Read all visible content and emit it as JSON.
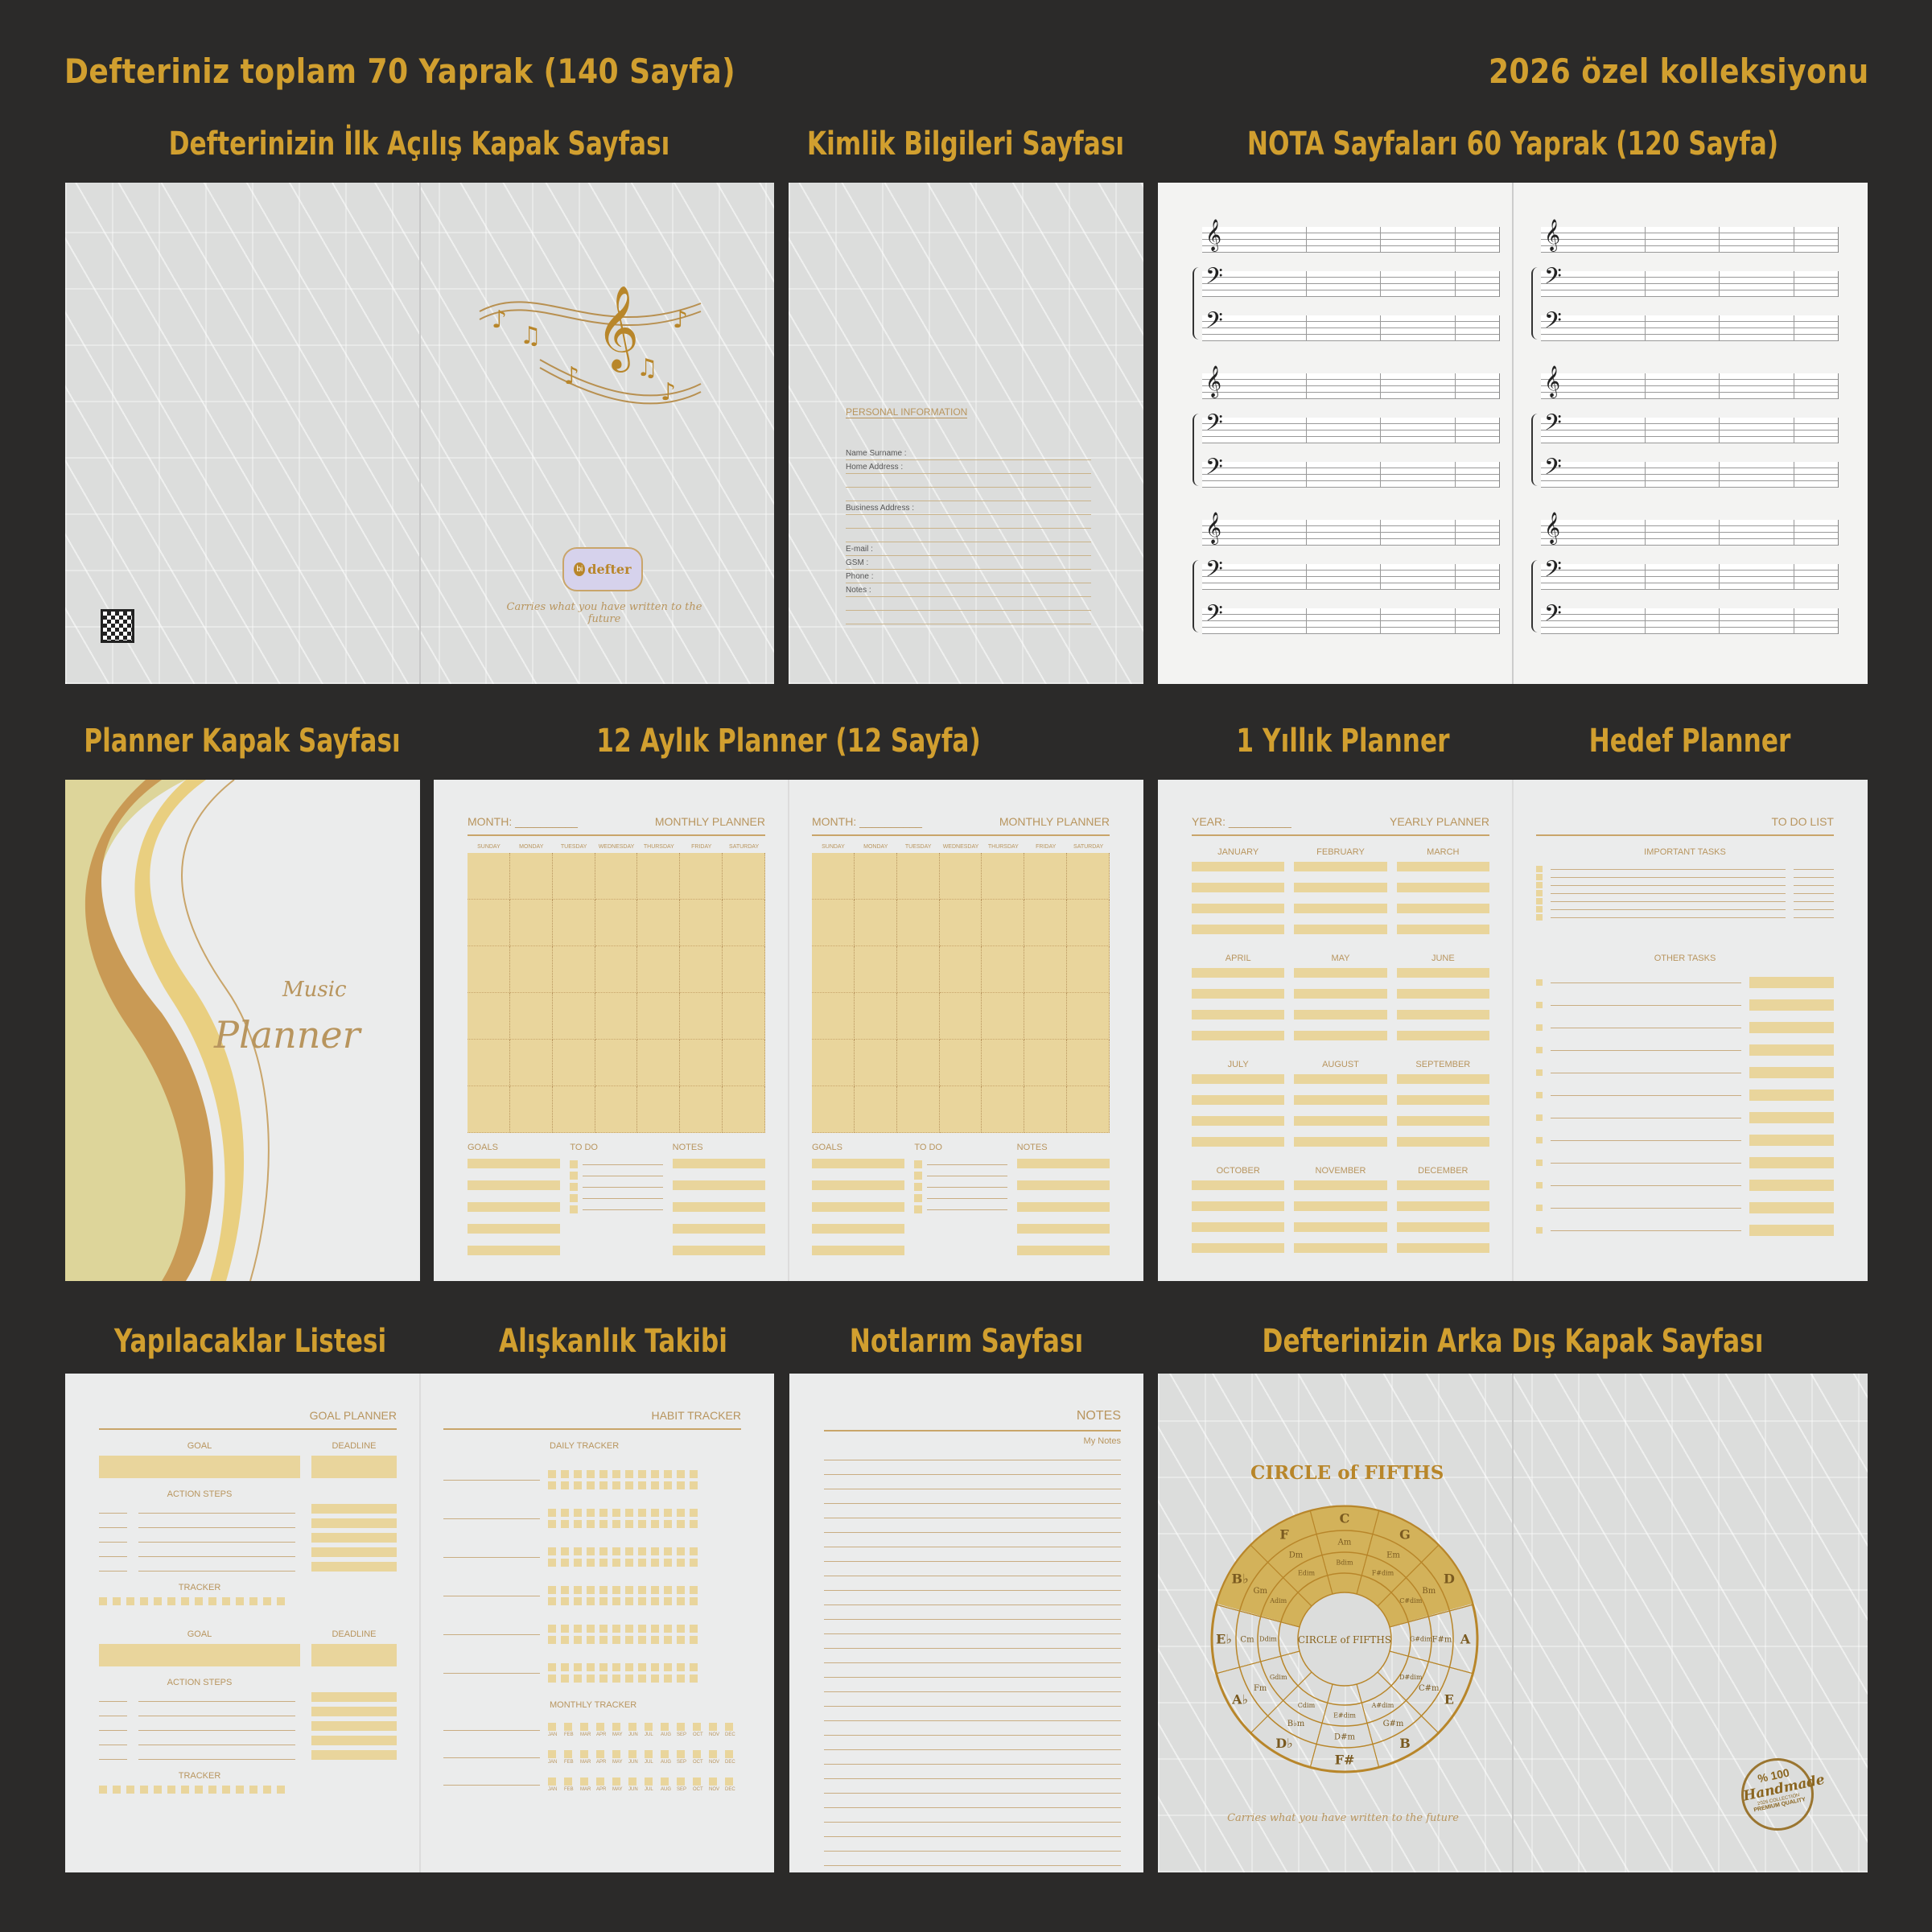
{
  "header": {
    "left": "Defteriniz toplam 70 Yaprak (140 Sayfa)",
    "right": "2026 özel kolleksiyonu"
  },
  "sections": {
    "cover": "Defterinizin İlk Açılış Kapak Sayfası",
    "identity": "Kimlik Bilgileri Sayfası",
    "nota": "NOTA Sayfaları 60 Yaprak (120 Sayfa)",
    "planner_cover": "Planner Kapak Sayfası",
    "monthly": "12 Aylık Planner (12 Sayfa)",
    "yearly": "1 Yıllık Planner",
    "goal_planner": "Hedef Planner",
    "todo": "Yapılacaklar Listesi",
    "habit": "Alışkanlık Takibi",
    "notes": "Notlarım Sayfası",
    "back": "Defterinizin Arka Dış Kapak Sayfası"
  },
  "colors": {
    "background": "#2b2a29",
    "title_gold": "#d19f2f",
    "bar_gold": "#e9d59c",
    "text_gold": "#b8955e",
    "page": "#ebecec"
  },
  "cover": {
    "logo_prefix": "bi",
    "logo_text": "defter",
    "tagline": "Carries what you have written to the future",
    "icons": [
      "music-notes-icon",
      "qr-code-icon"
    ]
  },
  "identity": {
    "heading": "PERSONAL INFORMATION",
    "fields": [
      "Name Surname  :",
      "Home Address   :",
      "",
      "",
      "Business Address :",
      "",
      "",
      "E-mail  :",
      "GSM    :",
      "Phone :",
      "Notes  :",
      "",
      ""
    ]
  },
  "nota": {
    "clefs": [
      "𝄞",
      "𝄢",
      "𝄢"
    ]
  },
  "planner_cover": {
    "line1": "Music",
    "line2": "Planner"
  },
  "monthly": {
    "month_label": "MONTH: __________",
    "title": "MONTHLY PLANNER",
    "days": [
      "SUNDAY",
      "MONDAY",
      "TUESDAY",
      "WEDNESDAY",
      "THURSDAY",
      "FRIDAY",
      "SATURDAY"
    ],
    "goals": "GOALS",
    "todo": "TO DO",
    "notes": "NOTES"
  },
  "yearly": {
    "year_label": "YEAR: __________",
    "title": "YEARLY PLANNER",
    "months": [
      "JANUARY",
      "FEBRUARY",
      "MARCH",
      "APRIL",
      "MAY",
      "JUNE",
      "JULY",
      "AUGUST",
      "SEPTEMBER",
      "OCTOBER",
      "NOVEMBER",
      "DECEMBER"
    ]
  },
  "todo_list": {
    "title": "TO DO LIST",
    "important": "IMPORTANT TASKS",
    "other": "OTHER TASKS"
  },
  "goal": {
    "title": "GOAL PLANNER",
    "goal": "GOAL",
    "deadline": "DEADLINE",
    "action_steps": "ACTION STEPS",
    "tracker": "TRACKER"
  },
  "habit": {
    "title": "HABIT TRACKER",
    "daily": "DAILY TRACKER",
    "monthly": "MONTHLY TRACKER",
    "months": [
      "JAN",
      "FEB",
      "MAR",
      "APR",
      "MAY",
      "JUN",
      "JUL",
      "AUG",
      "SEP",
      "OCT",
      "NOV",
      "DEC"
    ]
  },
  "notes": {
    "title": "NOTES",
    "subtitle": "My Notes"
  },
  "back": {
    "title": "CIRCLE of FIFTHS",
    "center": "CIRCLE of FIFTHS",
    "major": [
      "C",
      "G",
      "D",
      "A",
      "E",
      "B",
      "F#",
      "D♭",
      "A♭",
      "E♭",
      "B♭",
      "F"
    ],
    "minor": [
      "Am",
      "Em",
      "Bm",
      "F#m",
      "C#m",
      "G#m",
      "D#m",
      "B♭m",
      "Fm",
      "Cm",
      "Gm",
      "Dm"
    ],
    "dim": [
      "Bdim",
      "F#dim",
      "C#dim",
      "G#dim",
      "D#dim",
      "A#dim",
      "E#dim",
      "Cdim",
      "Gdim",
      "Ddim",
      "Adim",
      "Edim"
    ],
    "tagline": "Carries what you have written to the future",
    "badge_top": "% 100",
    "badge_main": "Handmade",
    "badge_small": "2026 COLLECTION",
    "badge_bottom": "PREMIUM QUALITY"
  }
}
